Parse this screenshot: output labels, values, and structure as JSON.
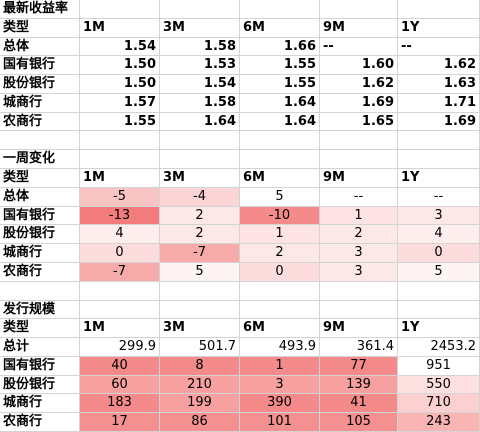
{
  "sections": [
    {
      "title": "最新收益率",
      "header": [
        "类型",
        "1M",
        "3M",
        "6M",
        "9M",
        "1Y"
      ],
      "rows": [
        [
          "总体",
          "1.54",
          "1.58",
          "1.66",
          "--",
          "--"
        ],
        [
          "国有银行",
          "1.50",
          "1.53",
          "1.55",
          "1.60",
          "1.62"
        ],
        [
          "股份银行",
          "1.50",
          "1.54",
          "1.55",
          "1.62",
          "1.63"
        ],
        [
          "城商行",
          "1.57",
          "1.58",
          "1.64",
          "1.69",
          "1.71"
        ],
        [
          "农商行",
          "1.55",
          "1.64",
          "1.64",
          "1.65",
          "1.69"
        ]
      ]
    },
    {
      "title": "一周变化",
      "header": [
        "类型",
        "1M",
        "3M",
        "6M",
        "9M",
        "1Y"
      ],
      "rows": [
        [
          "总体",
          "-5",
          "-4",
          "5",
          "--",
          "--"
        ],
        [
          "国有银行",
          "-13",
          "2",
          "-10",
          "1",
          "3"
        ],
        [
          "股份银行",
          "4",
          "2",
          "1",
          "2",
          "4"
        ],
        [
          "城商行",
          "0",
          "-7",
          "2",
          "3",
          "0"
        ],
        [
          "农商行",
          "-7",
          "5",
          "0",
          "3",
          "5"
        ]
      ],
      "colors": [
        [
          "#f8c4c4",
          "#fbd5d5",
          "#ffffff",
          "#ffffff",
          "#ffffff"
        ],
        [
          "#f27b7b",
          "#fde8e8",
          "#f48a8a",
          "#fde3e3",
          "#fde8e8"
        ],
        [
          "#feeeee",
          "#fde8e8",
          "#fde3e3",
          "#fde8e8",
          "#feeeee"
        ],
        [
          "#fcdcdc",
          "#f7aaaa",
          "#fde8e8",
          "#fde8e8",
          "#fcdcdc"
        ],
        [
          "#f7aaaa",
          "#fff4f4",
          "#fcdcdc",
          "#fde8e8",
          "#fff4f4"
        ]
      ]
    },
    {
      "title": "发行规模",
      "header": [
        "类型",
        "1M",
        "3M",
        "6M",
        "9M",
        "1Y"
      ],
      "rows": [
        [
          "总计",
          "299.9",
          "501.7",
          "493.9",
          "361.4",
          "2453.2"
        ],
        [
          "国有银行",
          "40",
          "8",
          "1",
          "77",
          "951"
        ],
        [
          "股份银行",
          "60",
          "210",
          "3",
          "139",
          "550"
        ],
        [
          "城商行",
          "183",
          "199",
          "390",
          "41",
          "710"
        ],
        [
          "农商行",
          "17",
          "86",
          "101",
          "105",
          "243"
        ]
      ],
      "colors": [
        [
          "#ffffff",
          "#ffffff",
          "#ffffff",
          "#ffffff",
          "#ffffff"
        ],
        [
          "#f48a8a",
          "#f48a8a",
          "#f48a8a",
          "#f48a8a",
          "#ffffff"
        ],
        [
          "#f7a0a0",
          "#f7a0a0",
          "#f7a0a0",
          "#f7a0a0",
          "#fde0e0"
        ],
        [
          "#f48a8a",
          "#f7a0a0",
          "#f48a8a",
          "#f48a8a",
          "#fcd0d0"
        ],
        [
          "#f49090",
          "#f49090",
          "#f49090",
          "#f49090",
          "#f9b4b4"
        ]
      ]
    }
  ]
}
